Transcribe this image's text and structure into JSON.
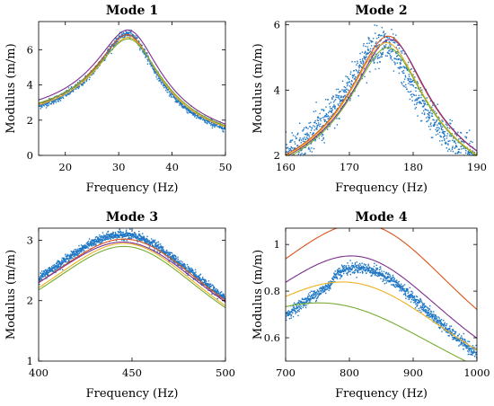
{
  "colors": {
    "measured": "#1f77c4",
    "series": [
      "#d95319",
      "#7e2f8e",
      "#edb120",
      "#77ac30"
    ]
  },
  "chart_data": [
    {
      "type": "scatter",
      "title": "Mode 1",
      "xlabel": "Frequency (Hz)",
      "ylabel": "Modulus (m/m)",
      "xlim": [
        15,
        50
      ],
      "ylim": [
        0,
        7.6
      ],
      "xticks": [
        "20",
        "30",
        "40",
        "50"
      ],
      "yticks": [
        "0",
        "2",
        "4",
        "6"
      ],
      "grid": false,
      "measured": {
        "fr": 32.5,
        "peak": 6.8,
        "q": 3.0,
        "rise": 0,
        "noise": 0.1,
        "count": 900
      },
      "curves": [
        {
          "fr": 32.6,
          "peak": 6.75,
          "q": 2.85
        },
        {
          "fr": 32.8,
          "peak": 7.0,
          "q": 2.75
        },
        {
          "fr": 32.8,
          "peak": 6.6,
          "q": 2.85
        },
        {
          "fr": 32.9,
          "peak": 6.5,
          "q": 2.7
        }
      ]
    },
    {
      "type": "scatter",
      "title": "Mode 2",
      "xlabel": "Frequency (Hz)",
      "ylabel": "Modulus (m/m)",
      "xlim": [
        160,
        190
      ],
      "ylim": [
        2,
        6.1
      ],
      "xticks": [
        "160",
        "170",
        "180",
        "190"
      ],
      "yticks": [
        "2",
        "4",
        "6"
      ],
      "grid": false,
      "measured": {
        "fr": 175.2,
        "peak": 5.4,
        "q": 15,
        "rise": 0,
        "noise": 0.28,
        "count": 1100
      },
      "curves": [
        {
          "fr": 176.3,
          "peak": 5.65,
          "q": 15
        },
        {
          "fr": 176.6,
          "peak": 5.55,
          "q": 15
        },
        {
          "fr": 176.0,
          "peak": 5.45,
          "q": 15
        },
        {
          "fr": 176.2,
          "peak": 5.3,
          "q": 15
        }
      ]
    },
    {
      "type": "scatter",
      "title": "Mode 3",
      "xlabel": "Frequency (Hz)",
      "ylabel": "Modulus (m/m)",
      "xlim": [
        400,
        500
      ],
      "ylim": [
        1,
        3.2
      ],
      "xticks": [
        "400",
        "450",
        "500"
      ],
      "yticks": [
        "1",
        "2",
        "3"
      ],
      "grid": false,
      "measured": {
        "fr": 450.5,
        "peak": 3.07,
        "q": 4.45,
        "rise": 0,
        "noise": 0.035,
        "count": 1200
      },
      "curves": [
        {
          "fr": 451.5,
          "peak": 3.0,
          "q": 4.45
        },
        {
          "fr": 451.0,
          "peak": 2.95,
          "q": 4.35
        },
        {
          "fr": 451.0,
          "peak": 2.93,
          "q": 4.6
        },
        {
          "fr": 451.0,
          "peak": 2.88,
          "q": 4.6
        }
      ]
    },
    {
      "type": "scatter",
      "title": "Mode 4",
      "xlabel": "Frequency (Hz)",
      "ylabel": "Modulus (m/m)",
      "xlim": [
        700,
        1000
      ],
      "ylim": [
        0.5,
        1.07
      ],
      "xticks": [
        "700",
        "800",
        "900",
        "1000"
      ],
      "yticks": [
        "0.6",
        "0.8",
        "1"
      ],
      "grid": false,
      "measured": {
        "fr": 840,
        "peak": 0.885,
        "q": 2.8,
        "rise": 0.045,
        "noise": 0.012,
        "count": 1100
      },
      "curves": [
        {
          "fr": 853,
          "peak": 1.065,
          "q": 2.4
        },
        {
          "fr": 840,
          "peak": 0.93,
          "q": 2.4
        },
        {
          "fr": 838,
          "peak": 0.815,
          "q": 2.1
        },
        {
          "fr": 818,
          "peak": 0.72,
          "q": 1.8
        }
      ]
    }
  ]
}
